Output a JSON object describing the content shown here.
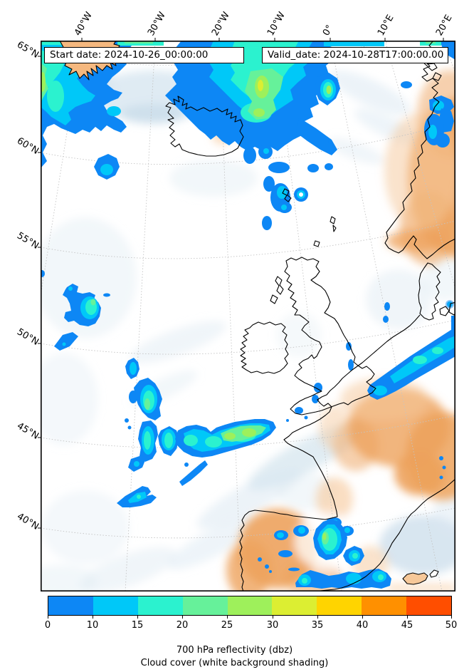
{
  "annotations": {
    "start_date": "Start date: 2024-10-26_00:00:00",
    "valid_date": "Valid_date: 2024-10-28T17:00:00.00"
  },
  "axes": {
    "top_ticks": [
      "40°W",
      "30°W",
      "20°W",
      "10°W",
      "0°",
      "10°E",
      "20°E"
    ],
    "left_ticks": [
      "65°N",
      "60°N",
      "55°N",
      "50°N",
      "45°N",
      "40°N"
    ]
  },
  "colorbar": {
    "tick_labels": [
      "0",
      "10",
      "15",
      "20",
      "25",
      "30",
      "35",
      "40",
      "45",
      "50"
    ],
    "segment_colors": [
      "#0d87f5",
      "#00c8f8",
      "#2bf2cf",
      "#66f19a",
      "#9ef05b",
      "#dcee32",
      "#ffd400",
      "#ff9000",
      "#ff4e00"
    ]
  },
  "captions": {
    "line1": "700 hPa reflectivity (dbz)",
    "line2": "Cloud cover (white background shading)"
  },
  "palette": {
    "lv1": "#0d87f5",
    "lv2": "#00c8f8",
    "lv3": "#2bf2cf",
    "lv4": "#66f19a",
    "lv5": "#9ef05b",
    "lv6": "#dcee32",
    "cloud": "#d9e7f1",
    "cloud2": "#c7dcea",
    "orange": "#eda25c",
    "orange2": "#f6c899",
    "land": "#f5b87f",
    "grid": "#c4c4c4",
    "coast": "#000000"
  },
  "chart_data": {
    "type": "map",
    "title": "700 hPa reflectivity (dbz) / Cloud cover (white background shading)",
    "colorbar_boundaries_dbz": [
      0,
      10,
      15,
      20,
      25,
      30,
      35,
      40,
      45,
      50
    ],
    "lon_gridlines": [
      "40°W",
      "30°W",
      "20°W",
      "10°W",
      "0°",
      "10°E",
      "20°E"
    ],
    "lat_gridlines": [
      "65°N",
      "60°N",
      "55°N",
      "50°N",
      "45°N",
      "40°N"
    ],
    "start_date": "2024-10-26_00:00:00",
    "valid_date": "2024-10-28T17:00:00.00"
  }
}
